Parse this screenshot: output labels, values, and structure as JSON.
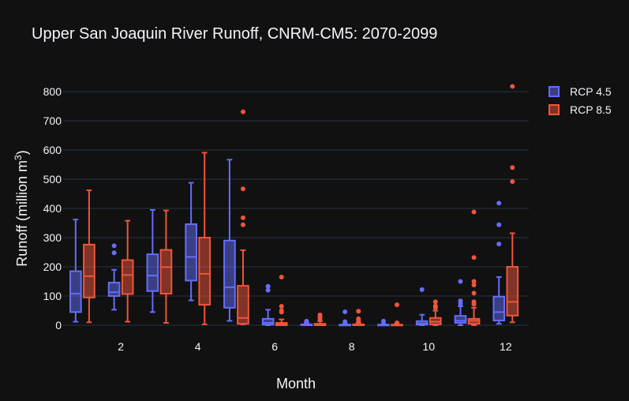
{
  "chart_data": {
    "type": "box",
    "title": "Upper San Joaquin River Runoff, CNRM-CM5: 2070-2099",
    "xlabel": "Month",
    "ylabel": "Runoff (million m",
    "ylabel_sup": "3",
    "ylabel_close": ")",
    "xlim": [
      0.5,
      12.6
    ],
    "ylim": [
      0,
      830
    ],
    "xticks": [
      2,
      4,
      6,
      8,
      10,
      12
    ],
    "yticks": [
      0,
      100,
      200,
      300,
      400,
      500,
      600,
      700,
      800
    ],
    "grid": true,
    "legend_position": "top-right",
    "series": [
      {
        "name": "RCP 4.5",
        "color": "#636efa",
        "boxes": [
          {
            "month": 1,
            "min": 12,
            "q1": 45,
            "median": 108,
            "q3": 185,
            "max": 362,
            "outliers": []
          },
          {
            "month": 2,
            "min": 53,
            "q1": 100,
            "median": 113,
            "q3": 146,
            "max": 190,
            "outliers": [
              248,
              272
            ]
          },
          {
            "month": 3,
            "min": 45,
            "q1": 117,
            "median": 170,
            "q3": 243,
            "max": 395,
            "outliers": []
          },
          {
            "month": 4,
            "min": 85,
            "q1": 153,
            "median": 234,
            "q3": 346,
            "max": 488,
            "outliers": []
          },
          {
            "month": 5,
            "min": 15,
            "q1": 60,
            "median": 130,
            "q3": 290,
            "max": 567,
            "outliers": []
          },
          {
            "month": 6,
            "min": 0,
            "q1": 2,
            "median": 8,
            "q3": 22,
            "max": 53,
            "outliers": [
              120,
              133
            ]
          },
          {
            "month": 7,
            "min": 0,
            "q1": 0,
            "median": 1,
            "q3": 3,
            "max": 8,
            "outliers": [
              14
            ]
          },
          {
            "month": 8,
            "min": 0,
            "q1": 0,
            "median": 1,
            "q3": 2,
            "max": 5,
            "outliers": [
              12,
              46
            ]
          },
          {
            "month": 9,
            "min": 0,
            "q1": 0,
            "median": 1,
            "q3": 2,
            "max": 5,
            "outliers": [
              14
            ]
          },
          {
            "month": 10,
            "min": 0,
            "q1": 2,
            "median": 6,
            "q3": 14,
            "max": 36,
            "outliers": [
              122
            ]
          },
          {
            "month": 11,
            "min": 0,
            "q1": 8,
            "median": 15,
            "q3": 32,
            "max": 65,
            "outliers": [
              74,
              83,
              150
            ]
          },
          {
            "month": 12,
            "min": 5,
            "q1": 16,
            "median": 45,
            "q3": 98,
            "max": 165,
            "outliers": [
              278,
              344,
              418
            ]
          }
        ]
      },
      {
        "name": "RCP 8.5",
        "color": "#ef553b",
        "boxes": [
          {
            "month": 1,
            "min": 10,
            "q1": 95,
            "median": 168,
            "q3": 276,
            "max": 462,
            "outliers": []
          },
          {
            "month": 2,
            "min": 12,
            "q1": 107,
            "median": 172,
            "q3": 223,
            "max": 358,
            "outliers": []
          },
          {
            "month": 3,
            "min": 8,
            "q1": 108,
            "median": 199,
            "q3": 258,
            "max": 393,
            "outliers": []
          },
          {
            "month": 4,
            "min": 3,
            "q1": 70,
            "median": 176,
            "q3": 300,
            "max": 591,
            "outliers": []
          },
          {
            "month": 5,
            "min": 3,
            "q1": 5,
            "median": 25,
            "q3": 135,
            "max": 257,
            "outliers": [
              344,
              368,
              467,
              731
            ]
          },
          {
            "month": 6,
            "min": 0,
            "q1": 0,
            "median": 3,
            "q3": 8,
            "max": 20,
            "outliers": [
              45,
              50,
              65,
              165
            ]
          },
          {
            "month": 7,
            "min": 0,
            "q1": 0,
            "median": 2,
            "q3": 5,
            "max": 14,
            "outliers": [
              22,
              28,
              35
            ]
          },
          {
            "month": 8,
            "min": 0,
            "q1": 0,
            "median": 1,
            "q3": 3,
            "max": 8,
            "outliers": [
              15,
              22,
              48
            ]
          },
          {
            "month": 9,
            "min": 0,
            "q1": 0,
            "median": 1,
            "q3": 2,
            "max": 5,
            "outliers": [
              8,
              70
            ]
          },
          {
            "month": 10,
            "min": 0,
            "q1": 3,
            "median": 12,
            "q3": 25,
            "max": 50,
            "outliers": [
              60,
              66,
              80
            ]
          },
          {
            "month": 11,
            "min": 0,
            "q1": 5,
            "median": 15,
            "q3": 22,
            "max": 60,
            "outliers": [
              72,
              80,
              110,
              138,
              150,
              232,
              388
            ]
          },
          {
            "month": 12,
            "min": 10,
            "q1": 33,
            "median": 80,
            "q3": 200,
            "max": 315,
            "outliers": [
              492,
              540,
              818
            ]
          }
        ]
      }
    ]
  }
}
